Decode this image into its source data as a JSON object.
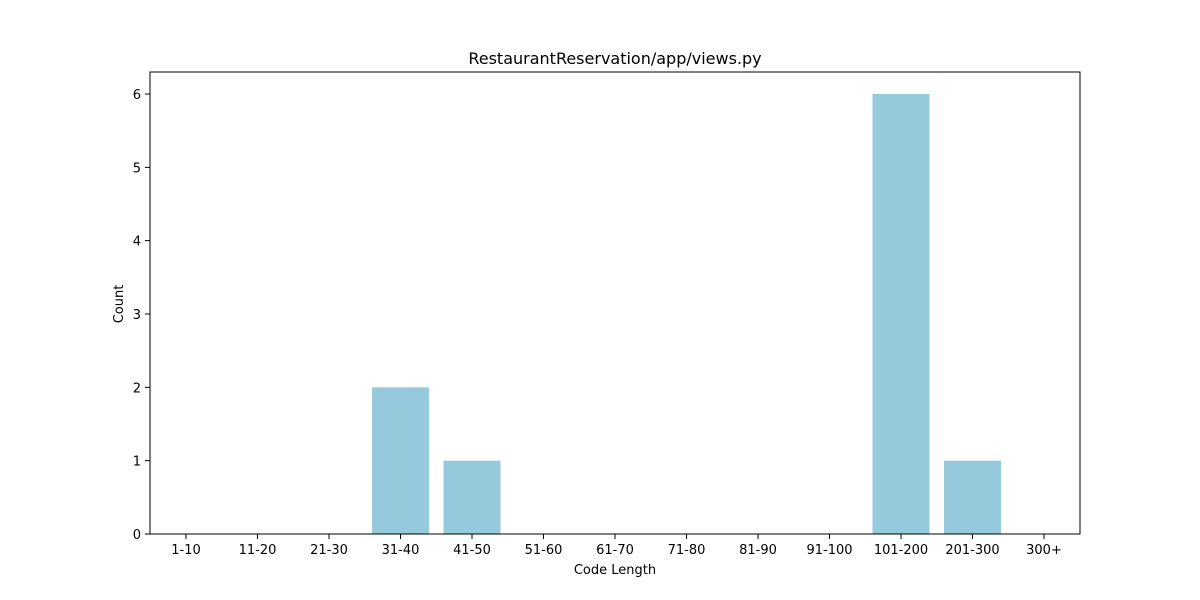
{
  "chart_data": {
    "type": "bar",
    "title": "RestaurantReservation/app/views.py",
    "xlabel": "Code Length",
    "ylabel": "Count",
    "categories": [
      "1-10",
      "11-20",
      "21-30",
      "31-40",
      "41-50",
      "51-60",
      "61-70",
      "71-80",
      "81-90",
      "91-100",
      "101-200",
      "201-300",
      "300+"
    ],
    "values": [
      0,
      0,
      0,
      2,
      1,
      0,
      0,
      0,
      0,
      0,
      6,
      1,
      0
    ],
    "yticks": [
      0,
      1,
      2,
      3,
      4,
      5,
      6
    ],
    "ylim": [
      0,
      6.3
    ],
    "bar_color": "#96c9dc",
    "grid": false,
    "legend": "none"
  }
}
